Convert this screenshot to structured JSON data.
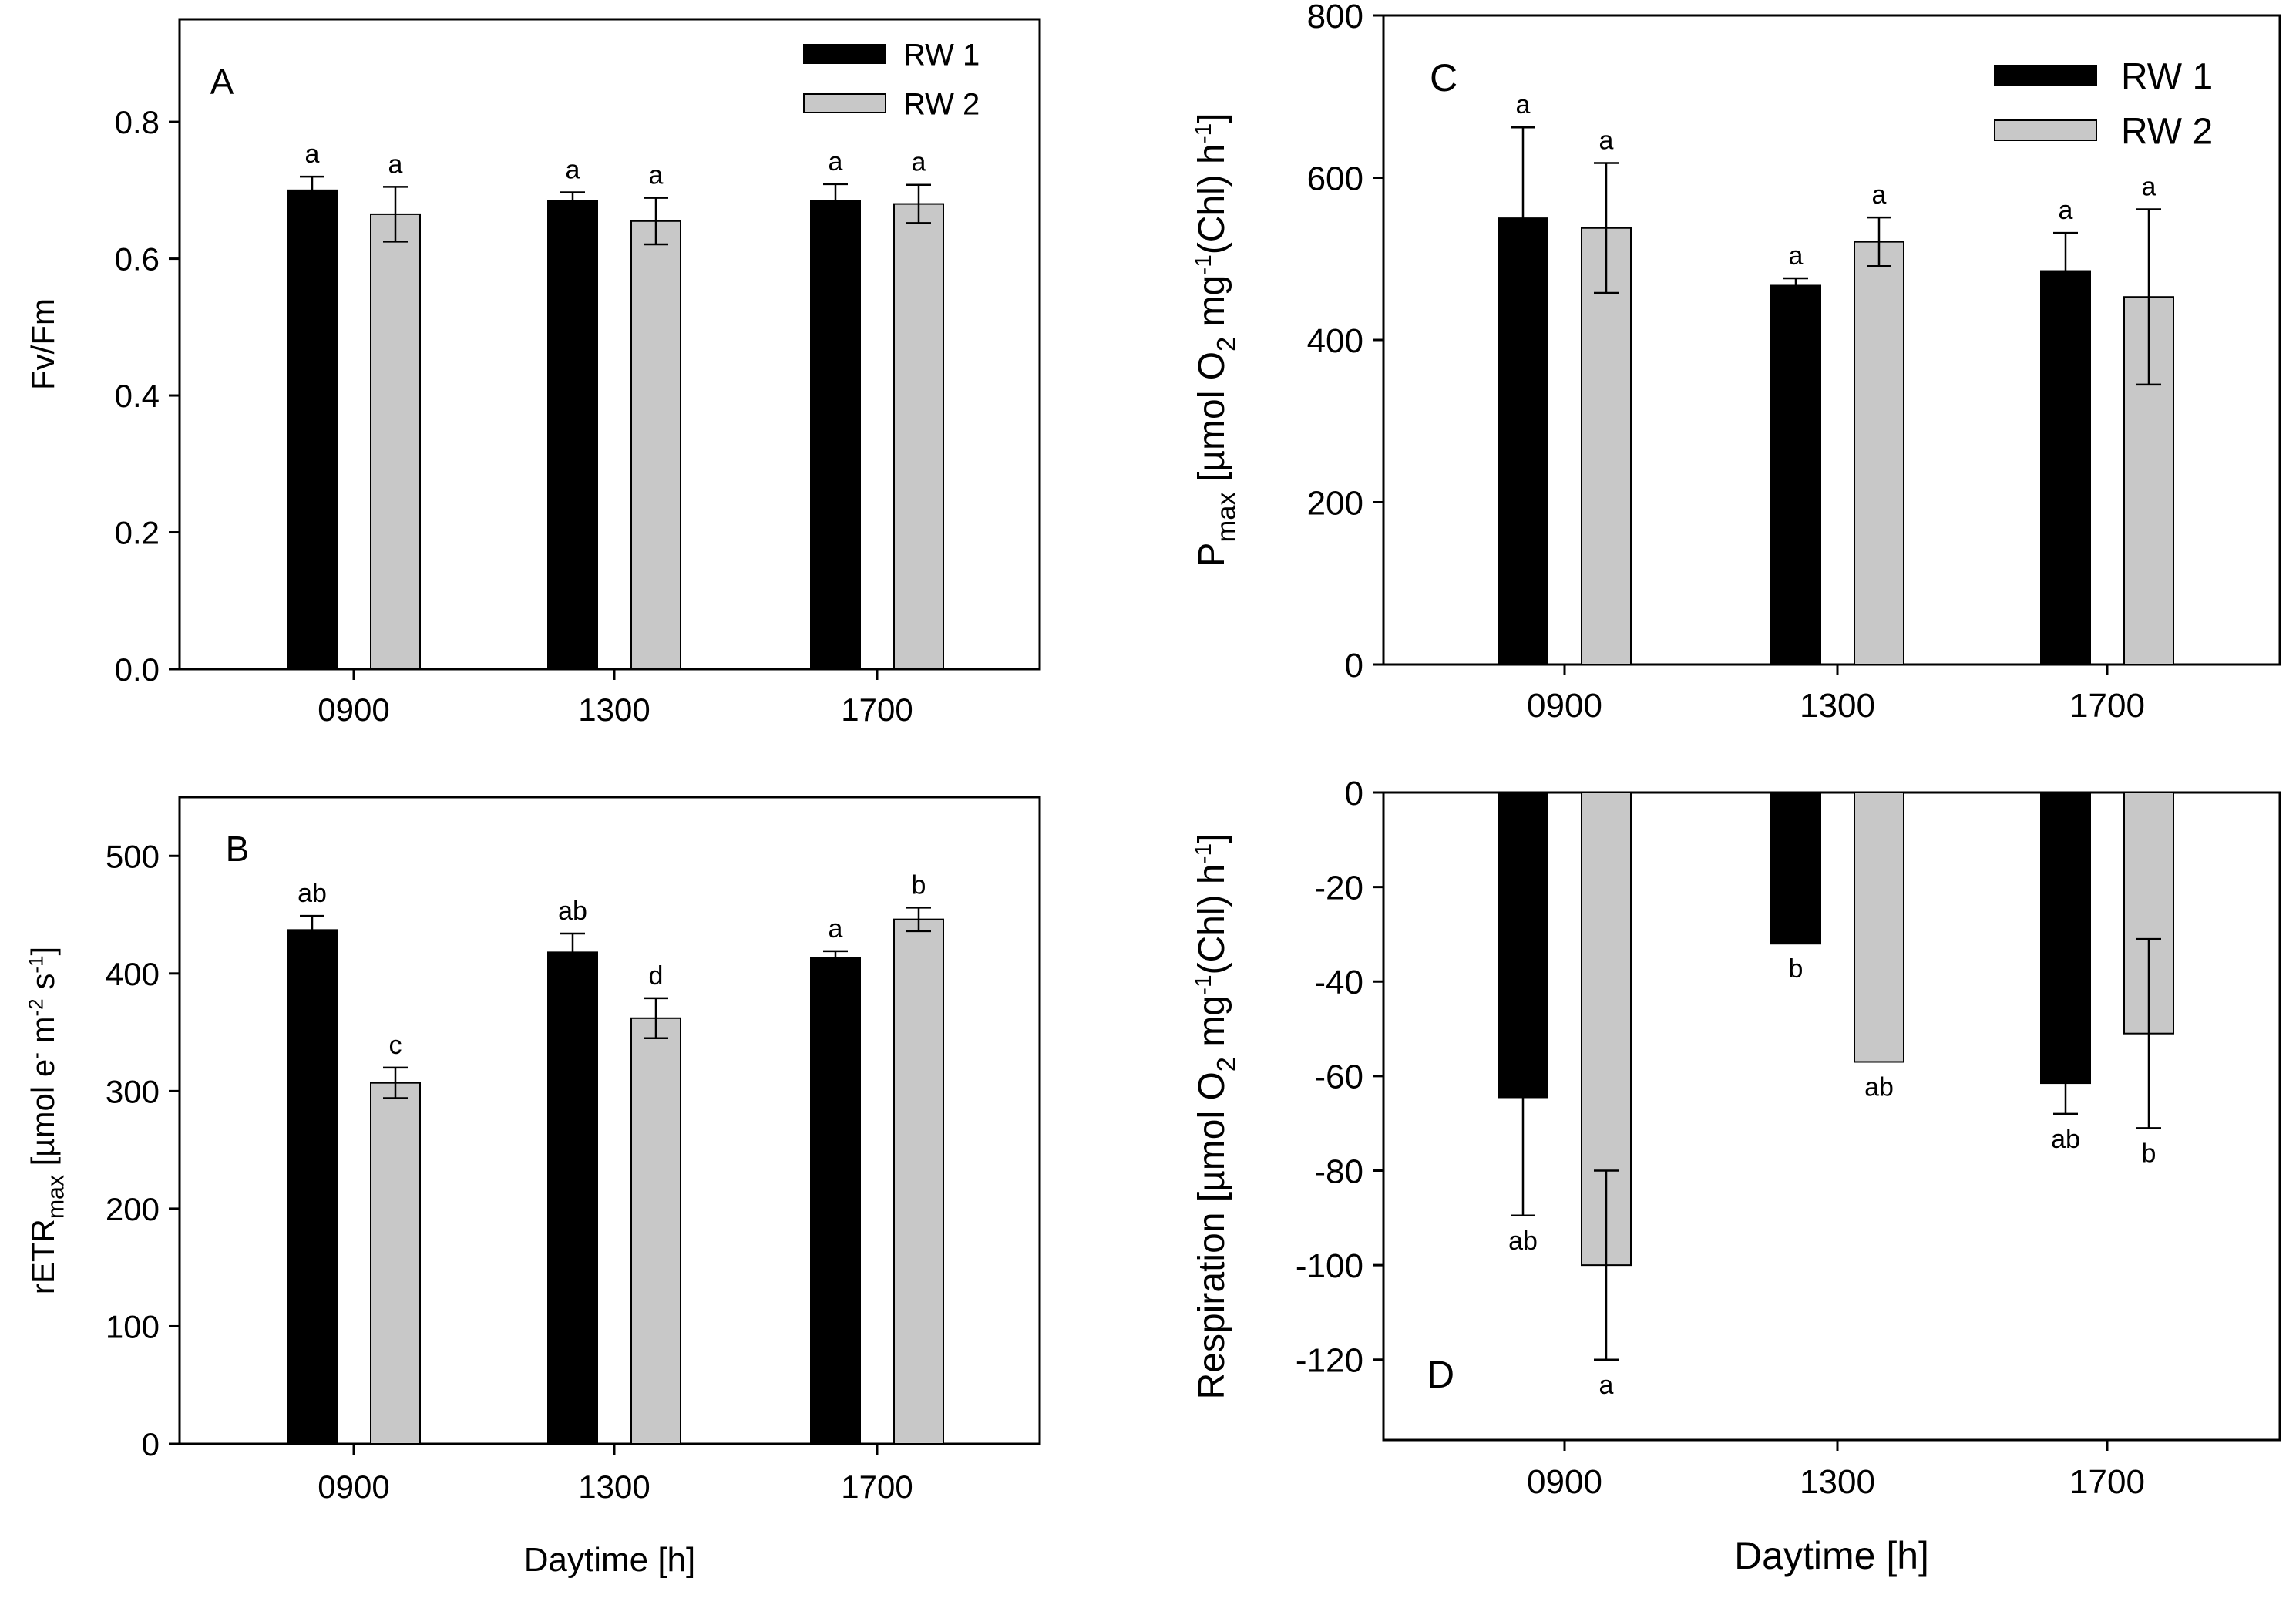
{
  "figure": {
    "colors": {
      "rw1": "#000000",
      "rw2": "#c8c8c8",
      "axis": "#000000",
      "background": "#ffffff"
    }
  },
  "chart_data": [
    {
      "id": "A",
      "panel_label": "A",
      "type": "bar",
      "categories": [
        "0900",
        "1300",
        "1700"
      ],
      "ylabel": "Fv/Fm",
      "xlabel": "",
      "ylim": [
        0,
        0.95
      ],
      "yticks": [
        0.0,
        0.2,
        0.4,
        0.6,
        0.8
      ],
      "ytick_labels": [
        "0.0",
        "0.2",
        "0.4",
        "0.6",
        "0.8"
      ],
      "legend": {
        "placement": "top-right",
        "entries": [
          "RW 1",
          "RW 2"
        ]
      },
      "series": [
        {
          "name": "RW 1",
          "values": [
            0.7,
            0.685,
            0.685
          ],
          "errors": [
            0.02,
            0.012,
            0.024
          ],
          "letters": [
            "a",
            "a",
            "a"
          ]
        },
        {
          "name": "RW 2",
          "values": [
            0.665,
            0.655,
            0.68
          ],
          "errors": [
            0.04,
            0.034,
            0.028
          ],
          "letters": [
            "a",
            "a",
            "a"
          ]
        }
      ]
    },
    {
      "id": "B",
      "panel_label": "B",
      "type": "bar",
      "categories": [
        "0900",
        "1300",
        "1700"
      ],
      "ylabel": "rETRmax [µmol e⁻ m⁻² s⁻¹]",
      "xlabel": "Daytime [h]",
      "ylim": [
        0,
        550
      ],
      "yticks": [
        0,
        100,
        200,
        300,
        400,
        500
      ],
      "ytick_labels": [
        "0",
        "100",
        "200",
        "300",
        "400",
        "500"
      ],
      "series": [
        {
          "name": "RW 1",
          "values": [
            437,
            418,
            413
          ],
          "errors": [
            12,
            16,
            6
          ],
          "letters": [
            "ab",
            "ab",
            "a"
          ]
        },
        {
          "name": "RW 2",
          "values": [
            307,
            362,
            446
          ],
          "errors": [
            13,
            17,
            10
          ],
          "letters": [
            "c",
            "d",
            "b"
          ]
        }
      ]
    },
    {
      "id": "C",
      "panel_label": "C",
      "type": "bar",
      "categories": [
        "0900",
        "1300",
        "1700"
      ],
      "ylabel": "Pmax [µmol O₂ mg⁻¹(Chl) h⁻¹]",
      "xlabel": "",
      "ylim": [
        0,
        800
      ],
      "yticks": [
        0,
        200,
        400,
        600,
        800
      ],
      "ytick_labels": [
        "0",
        "200",
        "400",
        "600",
        "800"
      ],
      "legend": {
        "placement": "top-right",
        "entries": [
          "RW 1",
          "RW 2"
        ]
      },
      "series": [
        {
          "name": "RW 1",
          "values": [
            550,
            467,
            485
          ],
          "errors": [
            112,
            9,
            47
          ],
          "letters": [
            "a",
            "a",
            "a"
          ]
        },
        {
          "name": "RW 2",
          "values": [
            538,
            521,
            453
          ],
          "errors": [
            80,
            30,
            108
          ],
          "letters": [
            "a",
            "a",
            "a"
          ]
        }
      ]
    },
    {
      "id": "D",
      "panel_label": "D",
      "type": "bar",
      "categories": [
        "0900",
        "1300",
        "1700"
      ],
      "ylabel": "Respiration [µmol O₂ mg⁻¹(Chl) h⁻¹]",
      "xlabel": "Daytime [h]",
      "ylim": [
        -137,
        0
      ],
      "yticks": [
        0,
        -20,
        -40,
        -60,
        -80,
        -100,
        -120
      ],
      "ytick_labels": [
        "0",
        "-20",
        "-40",
        "-60",
        "-80",
        "-100",
        "-120"
      ],
      "series": [
        {
          "name": "RW 1",
          "values": [
            -64.5,
            -32,
            -61.5
          ],
          "errors": [
            25,
            0,
            6.5
          ],
          "letters": [
            "ab",
            "b",
            "ab"
          ]
        },
        {
          "name": "RW 2",
          "values": [
            -100,
            -57,
            -51
          ],
          "errors": [
            20,
            0,
            20
          ],
          "letters": [
            "a",
            "ab",
            "b"
          ]
        }
      ]
    }
  ]
}
